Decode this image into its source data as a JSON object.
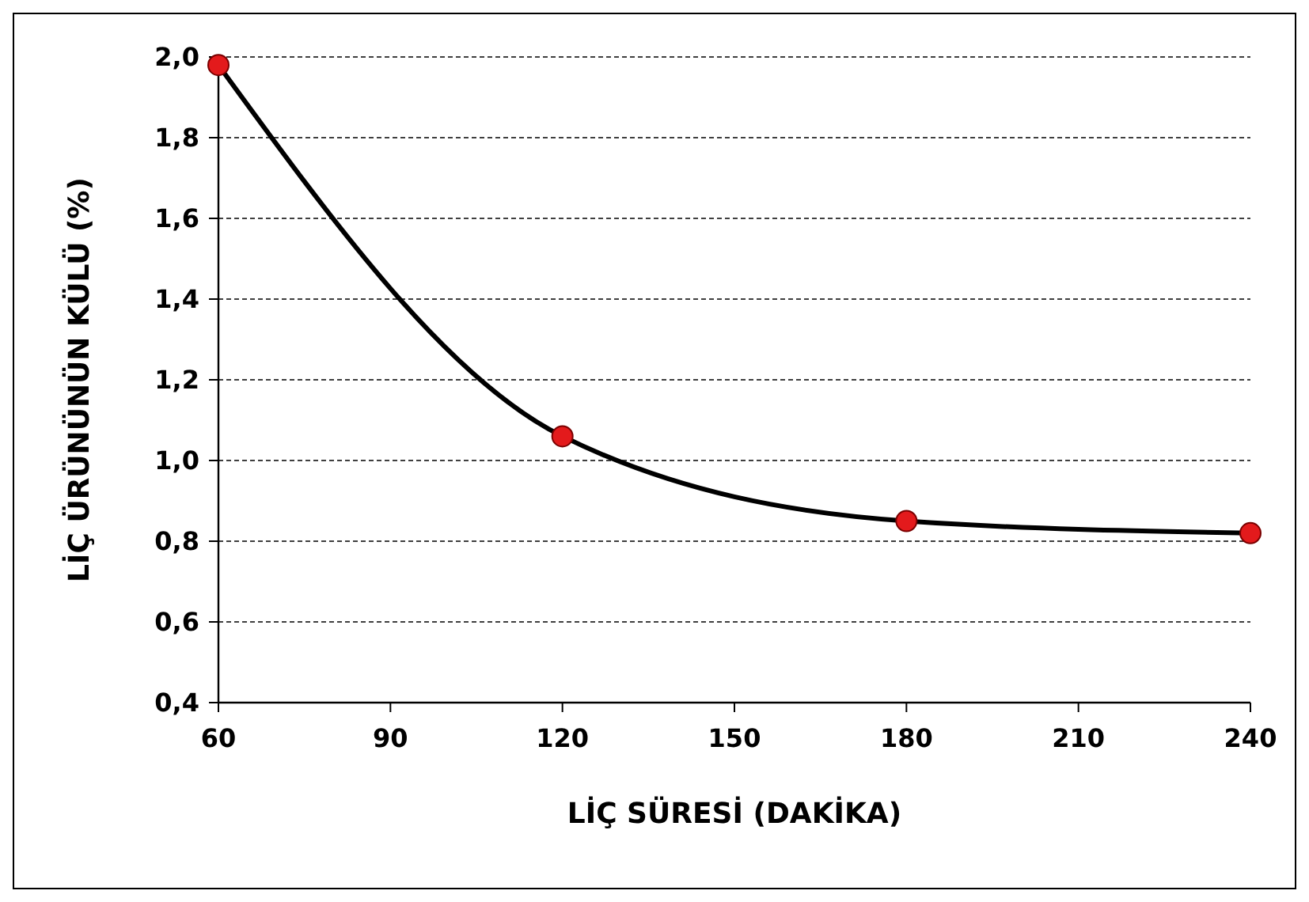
{
  "chart_data": {
    "type": "line",
    "xlabel": "LİÇ SÜRESİ (DAKİKA)",
    "ylabel": "LİÇ ÜRÜNÜNÜN KÜLÜ (%)",
    "x": [
      60,
      120,
      180,
      240
    ],
    "series": [
      {
        "color": "#e31a1c",
        "values": [
          1.98,
          1.06,
          0.85,
          0.82
        ]
      }
    ],
    "xlim": [
      60,
      240
    ],
    "xticks": [
      60,
      90,
      120,
      150,
      180,
      210,
      240
    ],
    "ylim": [
      0.4,
      2.0
    ],
    "yticks": [
      {
        "value": 0.4,
        "label": "0,4"
      },
      {
        "value": 0.6,
        "label": "0,6"
      },
      {
        "value": 0.8,
        "label": "0,8"
      },
      {
        "value": 1.0,
        "label": "1,0"
      },
      {
        "value": 1.2,
        "label": "1,2"
      },
      {
        "value": 1.4,
        "label": "1,4"
      },
      {
        "value": 1.6,
        "label": "1,6"
      },
      {
        "value": 1.8,
        "label": "1,8"
      },
      {
        "value": 2.0,
        "label": "2,0"
      }
    ],
    "grid": "y",
    "marker": "circle",
    "line_style": "solid"
  }
}
